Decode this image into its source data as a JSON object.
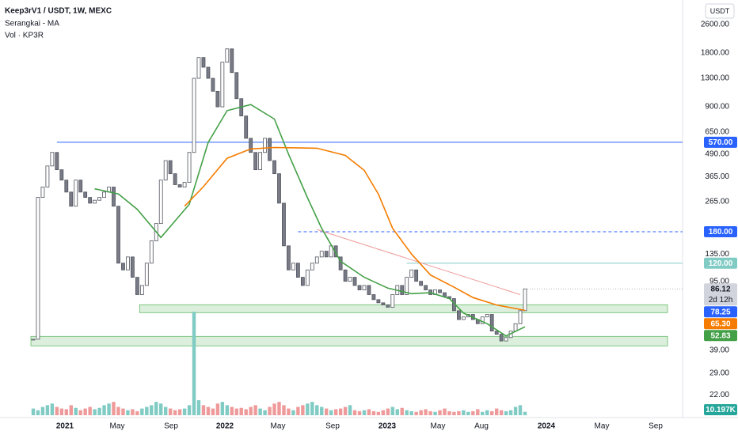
{
  "header": {
    "symbol": "Keep3rV1 / USDT, 1W, MEXC",
    "indicator": "Serangkai - MA",
    "volume": "Vol · KP3R",
    "currency": "USDT"
  },
  "chart_data": {
    "type": "candlestick",
    "log": true,
    "close": [
      45,
      280,
      320,
      420,
      500,
      400,
      350,
      300,
      250,
      350,
      300,
      280,
      260,
      270,
      280,
      300,
      320,
      250,
      120,
      110,
      130,
      100,
      80,
      90,
      120,
      160,
      200,
      350,
      450,
      380,
      330,
      320,
      340,
      500,
      1300,
      1700,
      1500,
      1300,
      1100,
      900,
      1600,
      1900,
      1400,
      1000,
      800,
      600,
      500,
      400,
      500,
      600,
      450,
      380,
      260,
      150,
      110,
      120,
      100,
      90,
      110,
      120,
      130,
      140,
      130,
      150,
      130,
      110,
      95,
      100,
      90,
      85,
      90,
      80,
      75,
      72,
      70,
      68,
      80,
      90,
      80,
      100,
      110,
      95,
      90,
      85,
      80,
      85,
      82,
      78,
      76,
      65,
      58,
      60,
      62,
      58,
      55,
      60,
      62,
      50,
      48,
      44,
      46,
      50,
      55,
      65,
      86.12
    ],
    "countdown": "2d 12h",
    "up_color": "#ffffff",
    "down_color": "#787b86",
    "outline": "#50535e",
    "ylim": [
      16.9,
      3567
    ],
    "yticks": [
      {
        "value": 2600,
        "label": "2600.00"
      },
      {
        "value": 1800,
        "label": "1800.00"
      },
      {
        "value": 1300,
        "label": "1300.00"
      },
      {
        "value": 900,
        "label": "900.00"
      },
      {
        "value": 650,
        "label": "650.00"
      },
      {
        "value": 490,
        "label": "490.00"
      },
      {
        "value": 365,
        "label": "365.00"
      },
      {
        "value": 265,
        "label": "265.00"
      },
      {
        "value": 135,
        "label": "135.00"
      },
      {
        "value": 95,
        "label": "95.00"
      },
      {
        "value": 39,
        "label": "39.00"
      },
      {
        "value": 29,
        "label": "29.00"
      },
      {
        "value": 22,
        "label": "22.00"
      }
    ],
    "x_labels": [
      "2021",
      "May",
      "Sep",
      "2022",
      "May",
      "Sep",
      "2023",
      "May",
      "Aug",
      "2024",
      "May",
      "Sep"
    ],
    "ma": [
      {
        "color": "#43a047",
        "x": [
          13,
          18,
          22,
          27,
          33,
          37,
          41,
          46,
          51,
          54,
          58,
          61,
          65,
          70,
          75,
          80,
          84,
          88,
          91,
          96,
          100,
          104
        ],
        "values": [
          313,
          293,
          240,
          167,
          256,
          569,
          857,
          927,
          769,
          489,
          279,
          188,
          123,
          100,
          87,
          81,
          82,
          76,
          63,
          55,
          47,
          52.83
        ]
      },
      {
        "color": "#f57c00",
        "x": [
          32,
          36,
          41,
          46,
          51,
          60,
          66,
          70,
          73,
          76,
          80,
          84,
          89,
          93,
          98,
          104
        ],
        "values": [
          250,
          322,
          464,
          523,
          533,
          528,
          481,
          397,
          292,
          188,
          135,
          103,
          88,
          77,
          70,
          65.3
        ],
        "last_label": "65.30"
      }
    ],
    "levels": [
      {
        "value": 570,
        "label": "570.00",
        "color": "#2962ff",
        "dash": false,
        "from": 5
      },
      {
        "value": 180,
        "label": "180.00",
        "color": "#2962ff",
        "dash": true,
        "from": 56
      },
      {
        "value": 120,
        "label": "120.00",
        "color": "#80cbc4",
        "dash": false,
        "from": 79
      },
      {
        "value": 78.25,
        "label": "78.25",
        "color": "#2962ff",
        "dash": false,
        "from": null
      }
    ],
    "zones": [
      {
        "low": 63.4,
        "high": 70.2,
        "from": 23
      },
      {
        "low": 41.3,
        "high": 46.7,
        "from": 0
      }
    ],
    "trendline": {
      "x": [
        60,
        103
      ],
      "values": [
        185,
        80
      ],
      "color": "#ef9a9a"
    },
    "volume": {
      "values": [
        20,
        15,
        25,
        30,
        35,
        25,
        20,
        18,
        30,
        22,
        15,
        20,
        25,
        18,
        22,
        30,
        35,
        40,
        25,
        20,
        15,
        18,
        12,
        20,
        25,
        30,
        40,
        35,
        25,
        20,
        15,
        18,
        20,
        30,
        310,
        45,
        30,
        25,
        20,
        35,
        40,
        30,
        25,
        20,
        22,
        18,
        25,
        30,
        20,
        15,
        25,
        35,
        40,
        30,
        20,
        15,
        25,
        30,
        35,
        40,
        30,
        25,
        20,
        15,
        18,
        20,
        25,
        30,
        15,
        12,
        15,
        18,
        12,
        10,
        15,
        20,
        25,
        18,
        22,
        15,
        12,
        10,
        15,
        18,
        12,
        10,
        15,
        20,
        12,
        10,
        12,
        15,
        10,
        12,
        18,
        10,
        15,
        12,
        20,
        15,
        12,
        15,
        25,
        30,
        10.197
      ],
      "ylim": [
        0,
        320
      ],
      "last_label": "10.197K",
      "up_color": "#80cbc4",
      "down_color": "#ef9a9a"
    }
  }
}
